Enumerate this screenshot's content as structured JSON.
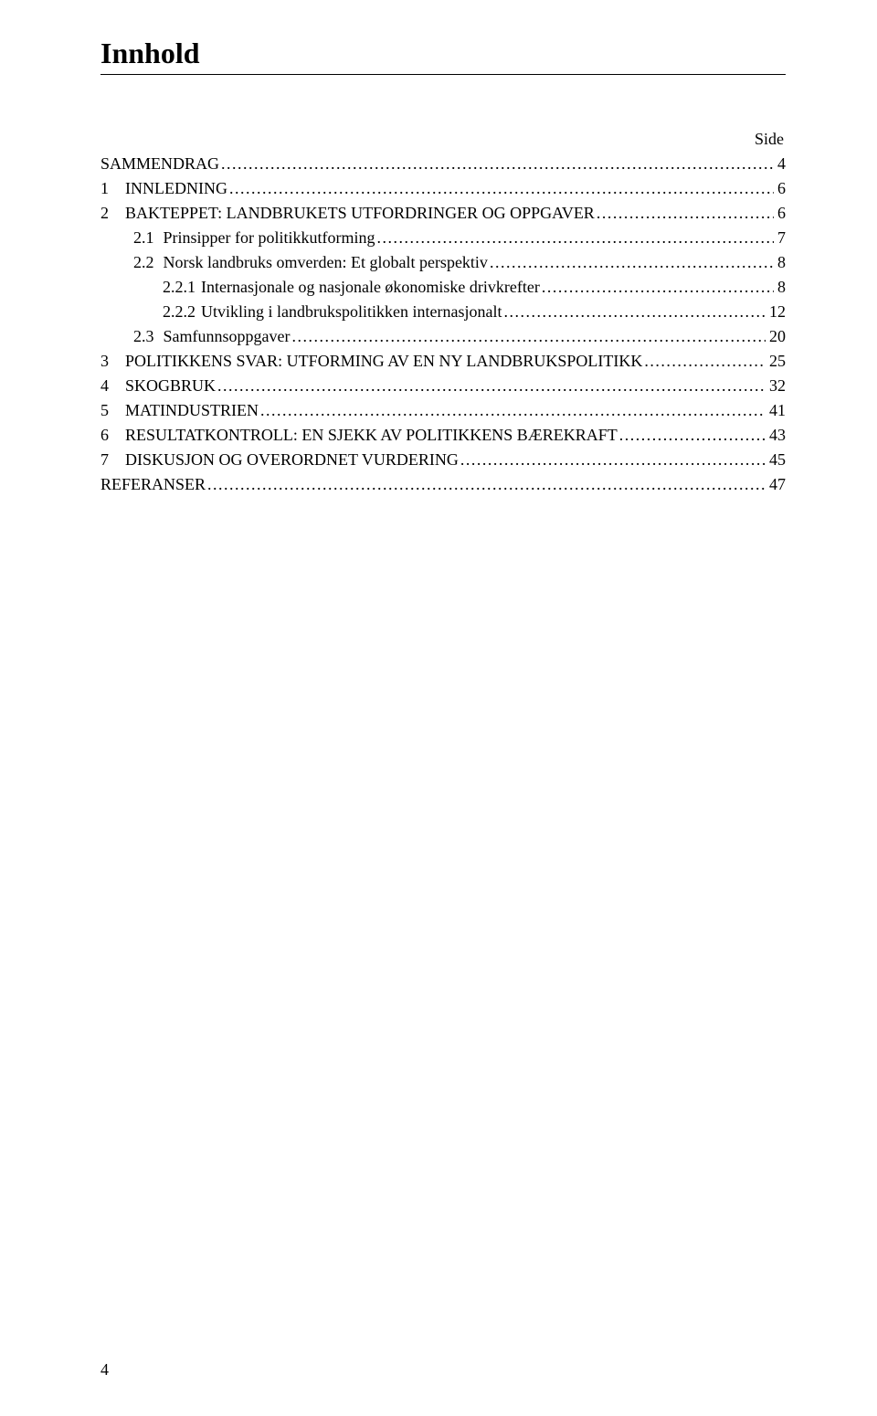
{
  "title": "Innhold",
  "side_label": "Side",
  "page_number": "4",
  "toc": [
    {
      "num": "",
      "label": "SAMMENDRAG",
      "page": "4",
      "indent": 0,
      "numClass": ""
    },
    {
      "num": "1",
      "label": "INNLEDNING",
      "page": "6",
      "indent": 0,
      "numClass": "toc-num-1"
    },
    {
      "num": "2",
      "label": "BAKTEPPET: LANDBRUKETS UTFORDRINGER OG OPPGAVER",
      "page": "6",
      "indent": 0,
      "numClass": "toc-num-1"
    },
    {
      "num": "2.1",
      "label": "Prinsipper for politikkutforming",
      "page": "7",
      "indent": 1,
      "numClass": "toc-num-2"
    },
    {
      "num": "2.2",
      "label": "Norsk landbruks omverden: Et globalt perspektiv",
      "page": "8",
      "indent": 1,
      "numClass": "toc-num-2"
    },
    {
      "num": "2.2.1",
      "label": "Internasjonale og nasjonale økonomiske drivkrefter",
      "page": "8",
      "indent": 2,
      "numClass": "toc-num-3"
    },
    {
      "num": "2.2.2",
      "label": "Utvikling i landbrukspolitikken internasjonalt",
      "page": "12",
      "indent": 2,
      "numClass": "toc-num-3"
    },
    {
      "num": "2.3",
      "label": "Samfunnsoppgaver",
      "page": "20",
      "indent": 1,
      "numClass": "toc-num-2"
    },
    {
      "num": "3",
      "label": "POLITIKKENS SVAR: UTFORMING AV EN NY LANDBRUKSPOLITIKK",
      "page": "25",
      "indent": 0,
      "numClass": "toc-num-1"
    },
    {
      "num": "4",
      "label": "SKOGBRUK",
      "page": "32",
      "indent": 0,
      "numClass": "toc-num-1"
    },
    {
      "num": "5",
      "label": "MATINDUSTRIEN",
      "page": "41",
      "indent": 0,
      "numClass": "toc-num-1"
    },
    {
      "num": "6",
      "label": "RESULTATKONTROLL: EN SJEKK AV POLITIKKENS BÆREKRAFT",
      "page": "43",
      "indent": 0,
      "numClass": "toc-num-1"
    },
    {
      "num": "7",
      "label": "DISKUSJON OG OVERORDNET VURDERING",
      "page": "45",
      "indent": 0,
      "numClass": "toc-num-1"
    },
    {
      "num": "",
      "label": "REFERANSER",
      "page": "47",
      "indent": 0,
      "numClass": ""
    }
  ]
}
